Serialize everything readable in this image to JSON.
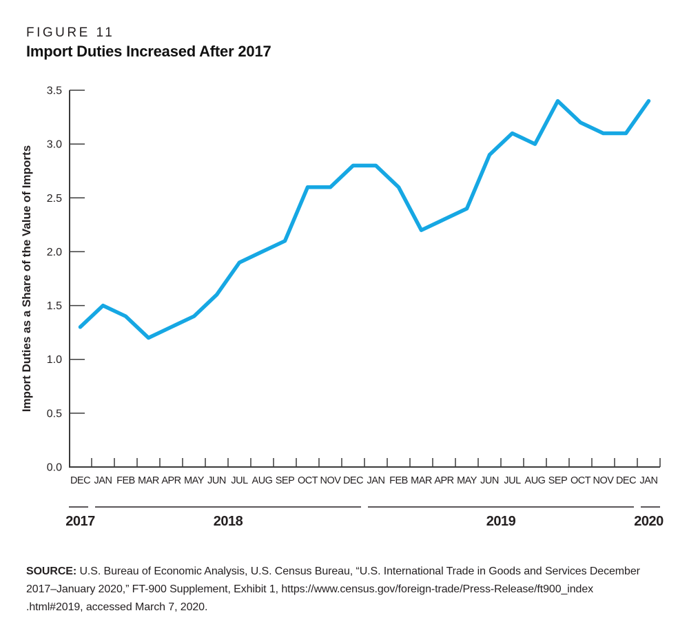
{
  "header": {
    "figure_label": "FIGURE 11",
    "title": "Import Duties Increased After 2017"
  },
  "chart_data": {
    "type": "line",
    "title": "Import Duties Increased After 2017",
    "figure_label": "FIGURE 11",
    "xlabel": "",
    "ylabel": "Import Duties as a Share of the Value of Imports",
    "ylim": [
      0.0,
      3.5
    ],
    "yticks": [
      0.0,
      0.5,
      1.0,
      1.5,
      2.0,
      2.5,
      3.0,
      3.5
    ],
    "grid": false,
    "legend": "none",
    "line_color": "#16a7e3",
    "axis_color": "#3a3a3a",
    "categories": [
      "DEC",
      "JAN",
      "FEB",
      "MAR",
      "APR",
      "MAY",
      "JUN",
      "JUL",
      "AUG",
      "SEP",
      "OCT",
      "NOV",
      "DEC",
      "JAN",
      "FEB",
      "MAR",
      "APR",
      "MAY",
      "JUN",
      "JUL",
      "AUG",
      "SEP",
      "OCT",
      "NOV",
      "DEC",
      "JAN"
    ],
    "year_groups": [
      {
        "label": "2017",
        "start": 0,
        "end": 0
      },
      {
        "label": "2018",
        "start": 1,
        "end": 12
      },
      {
        "label": "2019",
        "start": 13,
        "end": 24
      },
      {
        "label": "2020",
        "start": 25,
        "end": 25
      }
    ],
    "series": [
      {
        "name": "Import duties as a share of the value of imports",
        "values": [
          1.3,
          1.5,
          1.4,
          1.2,
          1.3,
          1.4,
          1.6,
          1.9,
          2.0,
          2.1,
          2.6,
          2.6,
          2.8,
          2.8,
          2.6,
          2.2,
          2.3,
          2.4,
          2.9,
          3.1,
          3.0,
          3.4,
          3.2,
          3.1,
          3.1,
          3.4
        ]
      }
    ]
  },
  "source": {
    "label": "SOURCE:",
    "lines": [
      "U.S. Bureau of Economic Analysis, U.S. Census Bureau, “U.S. International Trade in Goods and Services December",
      "2017–January 2020,” FT-900 Supplement, Exhibit 1, https://www.census.gov/foreign-trade/Press-Release/ft900_index",
      ".html#2019, accessed March 7, 2020."
    ]
  }
}
